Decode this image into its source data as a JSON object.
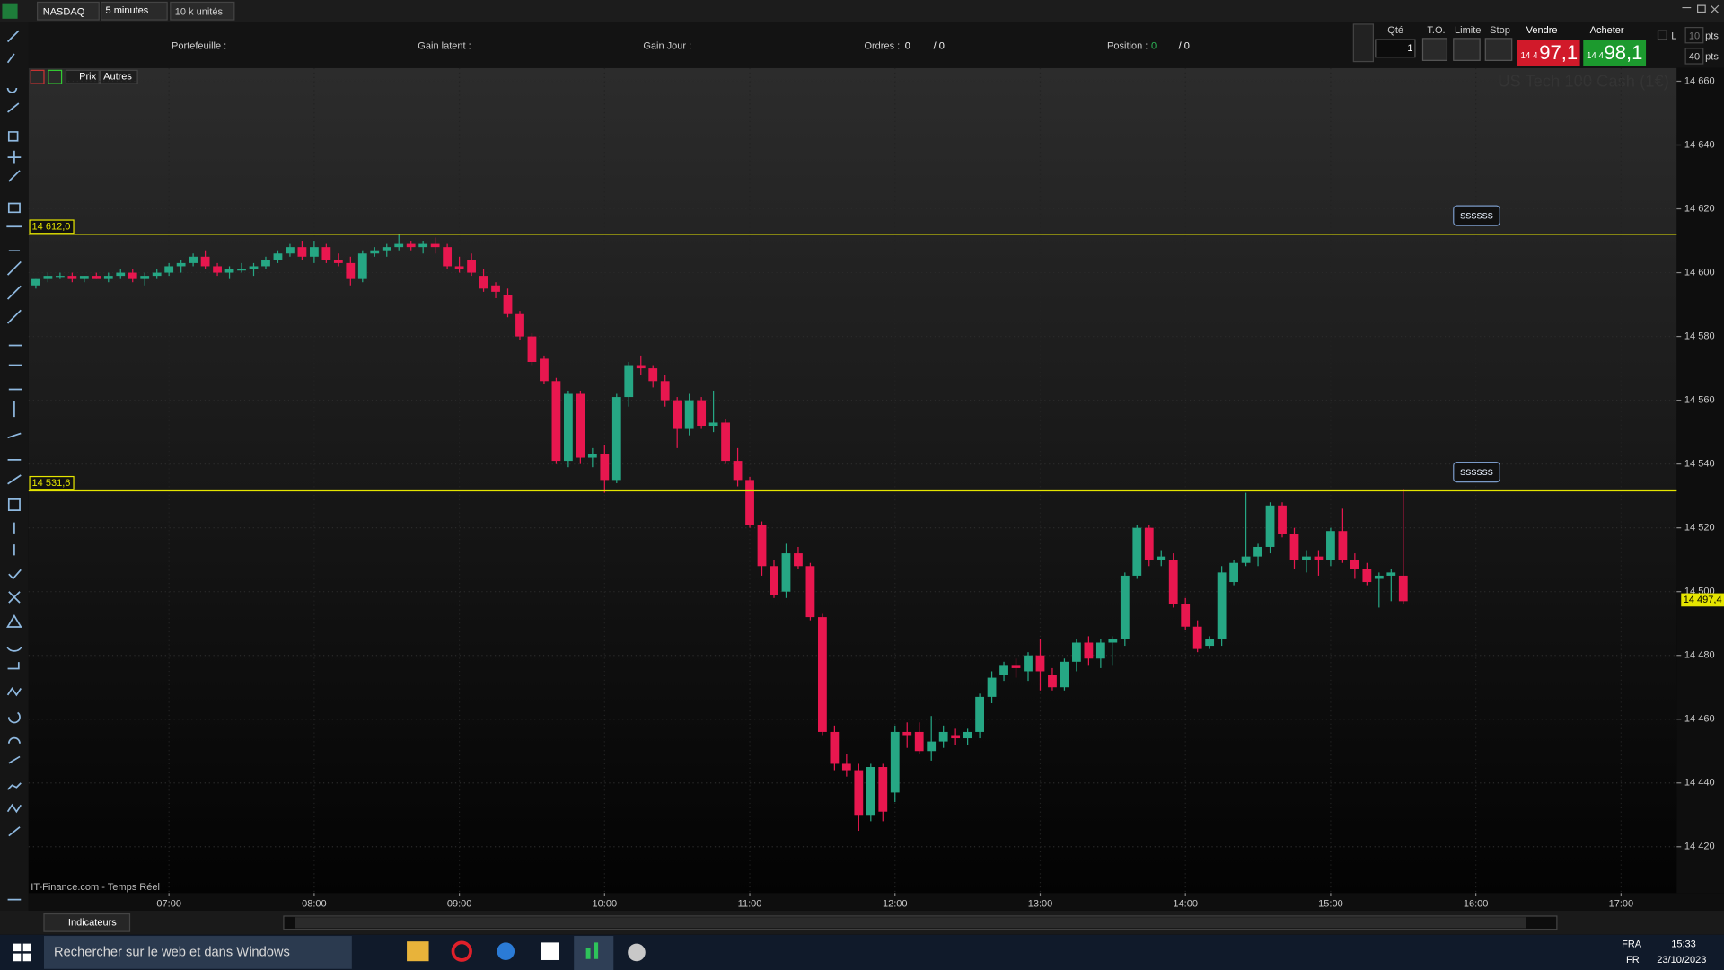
{
  "toolbar": {
    "instrument": "NASDAQ",
    "timeframe": "5 minutes",
    "quantity": "10 k unités"
  },
  "account": {
    "portfolio": "Portefeuille :",
    "unrealized": "Gain latent :",
    "day_gain": "Gain Jour :",
    "orders": "Ordres :",
    "orders_count": "0",
    "orders_total": "/ 0",
    "position": "Position :",
    "position_count": "0",
    "position_total": "/ 0"
  },
  "order_panel": {
    "qty_label": "Qté",
    "qty": "1",
    "to": "T.O.",
    "limit": "Limite",
    "stop": "Stop",
    "sell": "Vendre",
    "sell_prefix": "14 4",
    "sell_price": "97,1",
    "buy": "Acheter",
    "buy_prefix": "14 4",
    "buy_price": "98,1",
    "l": "L",
    "pts_top_value": "10",
    "pts_top": "pts",
    "pts_bottom_value": "40",
    "pts_bottom": "pts"
  },
  "chart_tabs": [
    "Prix",
    "Autres"
  ],
  "chart_data": {
    "type": "candlestick",
    "title": "US Tech 100 Cash (1€)",
    "source": "IT-Finance.com - Temps Réel",
    "up_color": "#26a784",
    "down_color": "#e8174f",
    "grid": true,
    "line_color": "#e5e500",
    "xlim": [
      "06:02",
      "17:23"
    ],
    "xticks": [
      "07:00",
      "08:00",
      "09:00",
      "10:00",
      "11:00",
      "12:00",
      "13:00",
      "14:00",
      "15:00",
      "16:00",
      "17:00"
    ],
    "ylim": [
      14405.5,
      14664.1
    ],
    "yticks": [
      {
        "value": 14420,
        "label": "14 420"
      },
      {
        "value": 14440,
        "label": "14 440"
      },
      {
        "value": 14460,
        "label": "14 460"
      },
      {
        "value": 14480,
        "label": "14 480"
      },
      {
        "value": 14500,
        "label": "14 500"
      },
      {
        "value": 14520,
        "label": "14 520"
      },
      {
        "value": 14540,
        "label": "14 540"
      },
      {
        "value": 14560,
        "label": "14 560"
      },
      {
        "value": 14580,
        "label": "14 580"
      },
      {
        "value": 14600,
        "label": "14 600"
      },
      {
        "value": 14620,
        "label": "14 620"
      },
      {
        "value": 14640,
        "label": "14 640"
      },
      {
        "value": 14660,
        "label": "14 660"
      }
    ],
    "hlines": [
      {
        "value": 14612.0,
        "label": "14 612,0",
        "tag": "ssssss"
      },
      {
        "value": 14531.6,
        "label": "14 531,6",
        "tag": "ssssss"
      }
    ],
    "last": {
      "value": 14497.4,
      "label": "14 497,4"
    },
    "x": [
      "06:05",
      "06:10",
      "06:15",
      "06:20",
      "06:25",
      "06:30",
      "06:35",
      "06:40",
      "06:45",
      "06:50",
      "06:55",
      "07:00",
      "07:05",
      "07:10",
      "07:15",
      "07:20",
      "07:25",
      "07:30",
      "07:35",
      "07:40",
      "07:45",
      "07:50",
      "07:55",
      "08:00",
      "08:05",
      "08:10",
      "08:15",
      "08:20",
      "08:25",
      "08:30",
      "08:35",
      "08:40",
      "08:45",
      "08:50",
      "08:55",
      "09:00",
      "09:05",
      "09:10",
      "09:15",
      "09:20",
      "09:25",
      "09:30",
      "09:35",
      "09:40",
      "09:45",
      "09:50",
      "09:55",
      "10:00",
      "10:05",
      "10:10",
      "10:15",
      "10:20",
      "10:25",
      "10:30",
      "10:35",
      "10:40",
      "10:45",
      "10:50",
      "10:55",
      "11:00",
      "11:05",
      "11:10",
      "11:15",
      "11:20",
      "11:25",
      "11:30",
      "11:35",
      "11:40",
      "11:45",
      "11:50",
      "11:55",
      "12:00",
      "12:05",
      "12:10",
      "12:15",
      "12:20",
      "12:25",
      "12:30",
      "12:35",
      "12:40",
      "12:45",
      "12:50",
      "12:55",
      "13:00",
      "13:05",
      "13:10",
      "13:15",
      "13:20",
      "13:25",
      "13:30",
      "13:35",
      "13:40",
      "13:45",
      "13:50",
      "13:55",
      "14:00",
      "14:05",
      "14:10",
      "14:15",
      "14:20",
      "14:25",
      "14:30",
      "14:35",
      "14:40",
      "14:45",
      "14:50",
      "14:55",
      "15:00",
      "15:05",
      "15:10",
      "15:15",
      "15:20",
      "15:25",
      "15:30"
    ],
    "ohlc": [
      [
        14596,
        14598,
        14595,
        14598
      ],
      [
        14598,
        14600,
        14597,
        14599
      ],
      [
        14599,
        14600,
        14598,
        14599
      ],
      [
        14599,
        14600,
        14597,
        14598
      ],
      [
        14598,
        14599,
        14597,
        14599
      ],
      [
        14599,
        14600,
        14598,
        14598
      ],
      [
        14598,
        14600,
        14597,
        14599
      ],
      [
        14599,
        14601,
        14598,
        14600
      ],
      [
        14600,
        14601,
        14597,
        14598
      ],
      [
        14598,
        14600,
        14596,
        14599
      ],
      [
        14599,
        14601,
        14598,
        14600
      ],
      [
        14600,
        14603,
        14599,
        14602
      ],
      [
        14602,
        14604,
        14600,
        14603
      ],
      [
        14603,
        14606,
        14602,
        14605
      ],
      [
        14605,
        14607,
        14601,
        14602
      ],
      [
        14602,
        14603,
        14599,
        14600
      ],
      [
        14600,
        14602,
        14598,
        14601
      ],
      [
        14601,
        14603,
        14600,
        14601
      ],
      [
        14601,
        14603,
        14599,
        14602
      ],
      [
        14602,
        14605,
        14601,
        14604
      ],
      [
        14604,
        14607,
        14603,
        14606
      ],
      [
        14606,
        14609,
        14605,
        14608
      ],
      [
        14608,
        14610,
        14604,
        14605
      ],
      [
        14605,
        14610,
        14603,
        14608
      ],
      [
        14608,
        14609,
        14603,
        14604
      ],
      [
        14604,
        14606,
        14602,
        14603
      ],
      [
        14603,
        14605,
        14596,
        14598
      ],
      [
        14598,
        14607,
        14597,
        14606
      ],
      [
        14606,
        14608,
        14605,
        14607
      ],
      [
        14607,
        14609,
        14605,
        14608
      ],
      [
        14608,
        14612,
        14607,
        14609
      ],
      [
        14609,
        14610,
        14607,
        14608
      ],
      [
        14608,
        14610,
        14606,
        14609
      ],
      [
        14609,
        14611,
        14606,
        14608
      ],
      [
        14608,
        14609,
        14601,
        14602
      ],
      [
        14602,
        14605,
        14600,
        14601
      ],
      [
        14604,
        14606,
        14599,
        14600
      ],
      [
        14599,
        14601,
        14594,
        14595
      ],
      [
        14596,
        14597,
        14592,
        14594
      ],
      [
        14593,
        14595,
        14586,
        14587
      ],
      [
        14587,
        14588,
        14579,
        14580
      ],
      [
        14580,
        14581,
        14571,
        14572
      ],
      [
        14573,
        14574,
        14565,
        14566
      ],
      [
        14566,
        14567,
        14540,
        14541
      ],
      [
        14541,
        14563,
        14539,
        14562
      ],
      [
        14562,
        14563,
        14540,
        14542
      ],
      [
        14542,
        14545,
        14539,
        14543
      ],
      [
        14543,
        14546,
        14531,
        14535
      ],
      [
        14535,
        14562,
        14534,
        14561
      ],
      [
        14561,
        14572,
        14558,
        14571
      ],
      [
        14571,
        14574,
        14568,
        14570
      ],
      [
        14570,
        14571,
        14564,
        14566
      ],
      [
        14566,
        14568,
        14558,
        14560
      ],
      [
        14560,
        14561,
        14545,
        14551
      ],
      [
        14551,
        14562,
        14549,
        14560
      ],
      [
        14560,
        14561,
        14551,
        14552
      ],
      [
        14552,
        14563,
        14550,
        14553
      ],
      [
        14553,
        14554,
        14540,
        14541
      ],
      [
        14541,
        14545,
        14533,
        14535
      ],
      [
        14535,
        14536,
        14520,
        14521
      ],
      [
        14521,
        14522,
        14505,
        14508
      ],
      [
        14508,
        14510,
        14498,
        14499
      ],
      [
        14500,
        14515,
        14498,
        14512
      ],
      [
        14512,
        14514,
        14507,
        14508
      ],
      [
        14508,
        14509,
        14491,
        14492
      ],
      [
        14492,
        14493,
        14455,
        14456
      ],
      [
        14456,
        14458,
        14444,
        14446
      ],
      [
        14446,
        14449,
        14442,
        14444
      ],
      [
        14444,
        14446,
        14425,
        14430
      ],
      [
        14430,
        14446,
        14428,
        14445
      ],
      [
        14445,
        14446,
        14428,
        14431
      ],
      [
        14437,
        14458,
        14434,
        14456
      ],
      [
        14456,
        14459,
        14451,
        14455
      ],
      [
        14456,
        14459,
        14449,
        14450
      ],
      [
        14450,
        14461,
        14447,
        14453
      ],
      [
        14453,
        14458,
        14451,
        14456
      ],
      [
        14455,
        14457,
        14452,
        14454
      ],
      [
        14454,
        14457,
        14452,
        14456
      ],
      [
        14456,
        14468,
        14454,
        14467
      ],
      [
        14467,
        14475,
        14465,
        14473
      ],
      [
        14474,
        14478,
        14472,
        14477
      ],
      [
        14477,
        14479,
        14473,
        14476
      ],
      [
        14475,
        14481,
        14472,
        14480
      ],
      [
        14480,
        14485,
        14469,
        14475
      ],
      [
        14474,
        14476,
        14469,
        14470
      ],
      [
        14470,
        14479,
        14469,
        14478
      ],
      [
        14478,
        14485,
        14475,
        14484
      ],
      [
        14484,
        14486,
        14477,
        14479
      ],
      [
        14479,
        14485,
        14476,
        14484
      ],
      [
        14484,
        14486,
        14477,
        14485
      ],
      [
        14485,
        14506,
        14483,
        14505
      ],
      [
        14505,
        14521,
        14504,
        14520
      ],
      [
        14520,
        14521,
        14508,
        14510
      ],
      [
        14510,
        14513,
        14508,
        14511
      ],
      [
        14510,
        14512,
        14495,
        14496
      ],
      [
        14496,
        14498,
        14488,
        14489
      ],
      [
        14489,
        14491,
        14481,
        14482
      ],
      [
        14483,
        14486,
        14482,
        14485
      ],
      [
        14485,
        14508,
        14483,
        14506
      ],
      [
        14503,
        14510,
        14502,
        14509
      ],
      [
        14509,
        14531,
        14508,
        14511
      ],
      [
        14511,
        14515,
        14508,
        14514
      ],
      [
        14514,
        14528,
        14512,
        14527
      ],
      [
        14527,
        14528,
        14517,
        14518
      ],
      [
        14518,
        14520,
        14507,
        14510
      ],
      [
        14510,
        14513,
        14506,
        14511
      ],
      [
        14511,
        14513,
        14505,
        14510
      ],
      [
        14510,
        14520,
        14508,
        14519
      ],
      [
        14519,
        14526,
        14509,
        14510
      ],
      [
        14510,
        14512,
        14504,
        14507
      ],
      [
        14507,
        14509,
        14502,
        14503
      ],
      [
        14504,
        14506,
        14495,
        14505
      ],
      [
        14505,
        14507,
        14497,
        14506
      ],
      [
        14505,
        14532,
        14496,
        14497
      ]
    ]
  },
  "bottom_bar": {
    "indicators": "Indicateurs"
  },
  "taskbar": {
    "search": "Rechercher sur le web et dans Windows",
    "lang_top": "FRA",
    "lang_bottom": "FR",
    "time": "15:33",
    "date": "23/10/2023"
  }
}
